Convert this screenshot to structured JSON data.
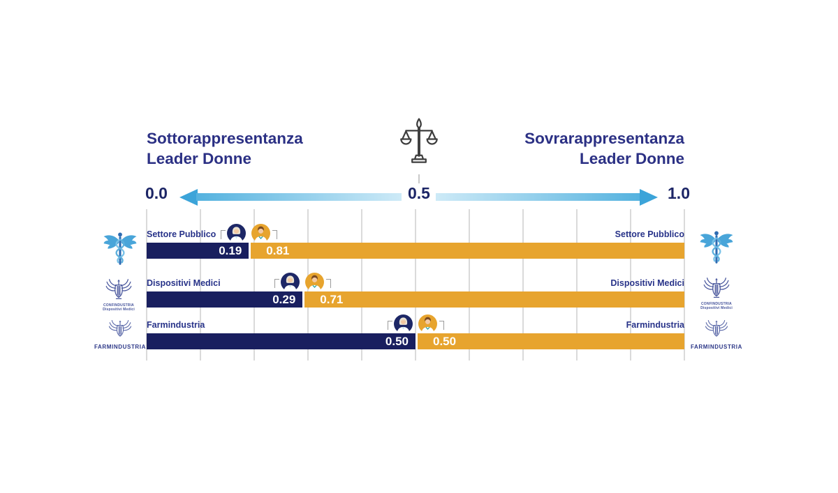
{
  "header": {
    "left_title_line1": "Sottorappresentanza",
    "left_title_line2": "Leader Donne",
    "right_title_line1": "Sovrarappresentanza",
    "right_title_line2": "Leader Donne"
  },
  "axis": {
    "min_label": "0.0",
    "mid_label": "0.5",
    "max_label": "1.0"
  },
  "chart_data": {
    "type": "bar",
    "orientation": "horizontal_stacked",
    "title": "Sottorappresentanza / Sovrarappresentanza Leader Donne",
    "categories": [
      "Settore Pubblico",
      "Dispositivi Medici",
      "Farmindustria"
    ],
    "series": [
      {
        "name": "Leader Donne",
        "color": "#191f5f",
        "values": [
          0.19,
          0.29,
          0.5
        ]
      },
      {
        "name": "Leader Uomini",
        "color": "#e7a42e",
        "values": [
          0.81,
          0.71,
          0.5
        ]
      }
    ],
    "xlim": [
      0,
      1
    ],
    "xticks": [
      "0.0",
      "0.5",
      "1.0"
    ],
    "gridline_step": 0.1,
    "grid": true,
    "legend_position": "none",
    "balance_point": 0.5
  },
  "rows": [
    {
      "label": "Settore Pubblico",
      "right_label": "Settore Pubblico",
      "navy_value": "0.19",
      "orange_value": "0.81"
    },
    {
      "label": "Dispositivi Medici",
      "right_label": "Dispositivi Medici",
      "navy_value": "0.29",
      "orange_value": "0.71"
    },
    {
      "label": "Farmindustria",
      "right_label": "Farmindustria",
      "navy_value": "0.50",
      "orange_value": "0.50"
    }
  ],
  "side": {
    "confindustria_line1": "CONFINDUSTRIA",
    "confindustria_line2": "Dispositivi Medici",
    "farmindustria_label": "FARMINDUSTRIA"
  },
  "colors": {
    "navy_bar": "#191f5f",
    "orange_bar": "#e7a42e",
    "navy_text": "#2b3084",
    "arrow_blue": "#3ca4d9",
    "arrow_light": "#cdeaf7",
    "gridline": "#dadada"
  }
}
